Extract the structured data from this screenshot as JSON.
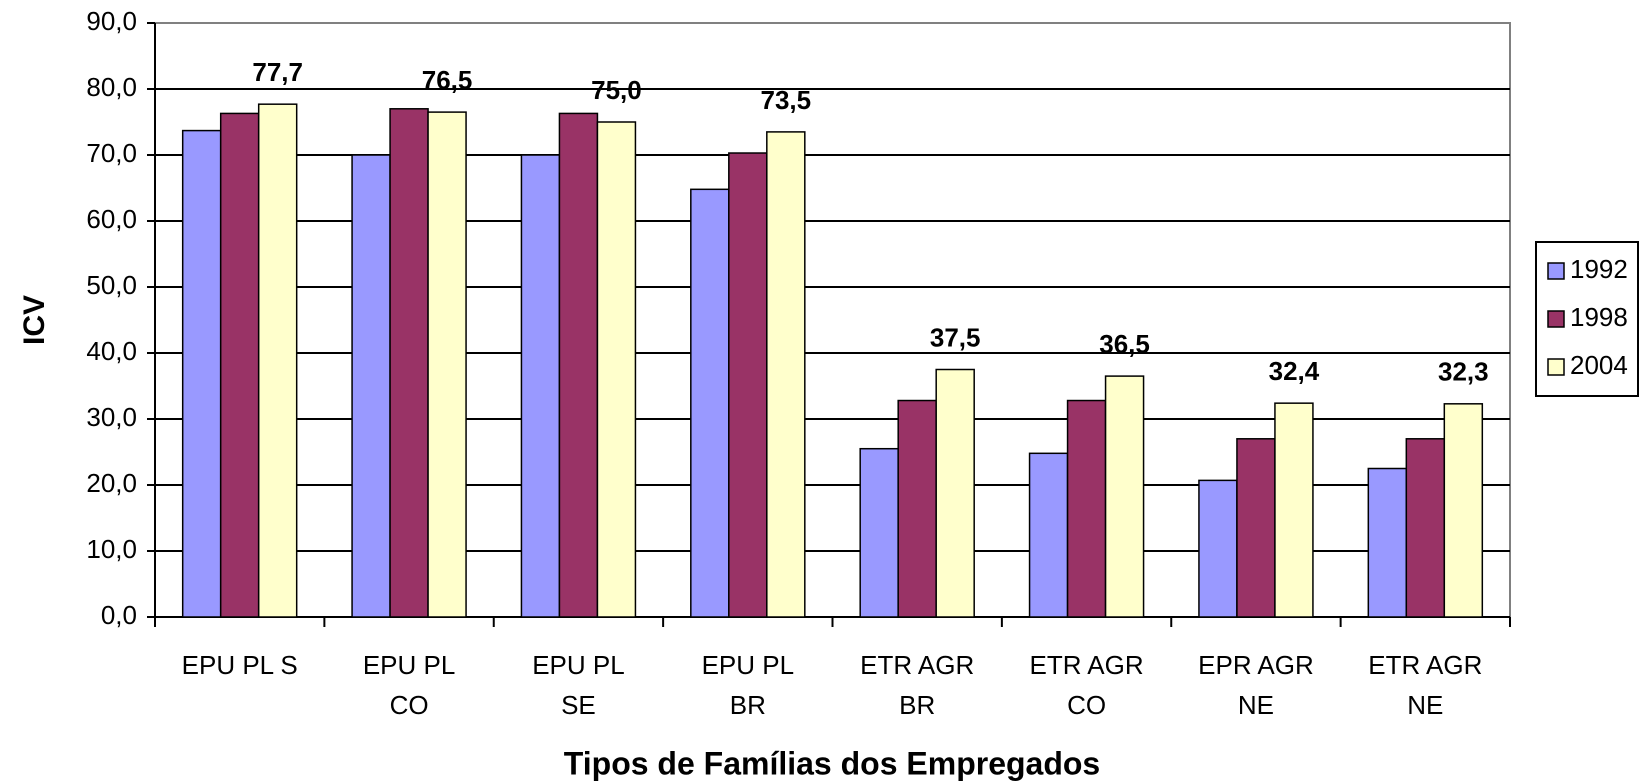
{
  "chart_data": {
    "type": "bar",
    "x_label": "Tipos de Famílias dos Empregados",
    "y_label": "ICV",
    "categories": [
      "EPU PL S",
      "EPU PL\nCO",
      "EPU PL\nSE",
      "EPU PL\nBR",
      "ETR AGR\nBR",
      "ETR AGR\nCO",
      "EPR AGR\nNE",
      "ETR AGR\nNE"
    ],
    "series": [
      {
        "name": "1992",
        "color": "#9999ff",
        "values": [
          73.7,
          70.0,
          70.0,
          64.8,
          25.5,
          24.8,
          20.7,
          22.5
        ]
      },
      {
        "name": "1998",
        "color": "#993366",
        "values": [
          76.3,
          77.0,
          76.3,
          70.3,
          32.8,
          32.8,
          27.0,
          27.0
        ]
      },
      {
        "name": "2004",
        "color": "#ffffcc",
        "values": [
          77.7,
          76.5,
          75.0,
          73.5,
          37.5,
          36.5,
          32.4,
          32.3
        ],
        "value_labels": [
          "77,7",
          "76,5",
          "75,0",
          "73,5",
          "37,5",
          "36,5",
          "32,4",
          "32,3"
        ]
      }
    ],
    "ylim": [
      0,
      90
    ],
    "yticks": [
      {
        "value": 0,
        "label": "0,0"
      },
      {
        "value": 10,
        "label": "10,0"
      },
      {
        "value": 20,
        "label": "20,0"
      },
      {
        "value": 30,
        "label": "30,0"
      },
      {
        "value": 40,
        "label": "40,0"
      },
      {
        "value": 50,
        "label": "50,0"
      },
      {
        "value": 60,
        "label": "60,0"
      },
      {
        "value": 70,
        "label": "70,0"
      },
      {
        "value": 80,
        "label": "80,0"
      },
      {
        "value": 90,
        "label": "90,0"
      }
    ],
    "grid": true,
    "legend": "right"
  }
}
